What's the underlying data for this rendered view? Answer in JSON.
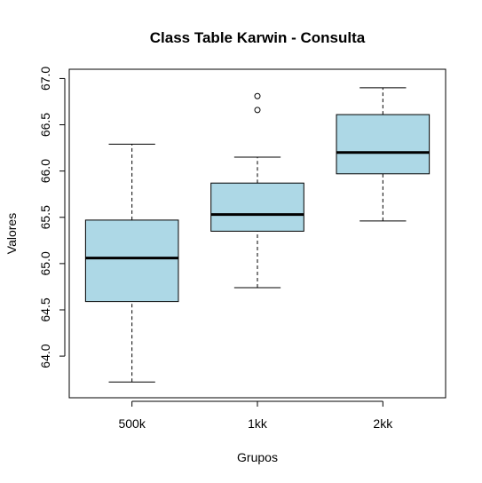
{
  "chart_data": {
    "type": "boxplot",
    "title": "Class Table Karwin - Consulta",
    "xlabel": "Grupos",
    "ylabel": "Valores",
    "categories": [
      "500k",
      "1kk",
      "2kk"
    ],
    "boxes": [
      {
        "category": "500k",
        "whisker_low": 63.72,
        "q1": 64.59,
        "median": 65.06,
        "q3": 65.47,
        "whisker_high": 66.29,
        "outliers": []
      },
      {
        "category": "1kk",
        "whisker_low": 64.74,
        "q1": 65.35,
        "median": 65.53,
        "q3": 65.87,
        "whisker_high": 66.15,
        "outliers": [
          66.66,
          66.81
        ]
      },
      {
        "category": "2kk",
        "whisker_low": 65.46,
        "q1": 65.97,
        "median": 66.2,
        "q3": 66.61,
        "whisker_high": 66.9,
        "outliers": []
      }
    ],
    "ylim": [
      63.55,
      67.1
    ],
    "yticks": [
      "64.0",
      "64.5",
      "65.0",
      "65.5",
      "66.0",
      "66.5",
      "67.0"
    ],
    "box_color": "#add8e6",
    "grid": false
  }
}
